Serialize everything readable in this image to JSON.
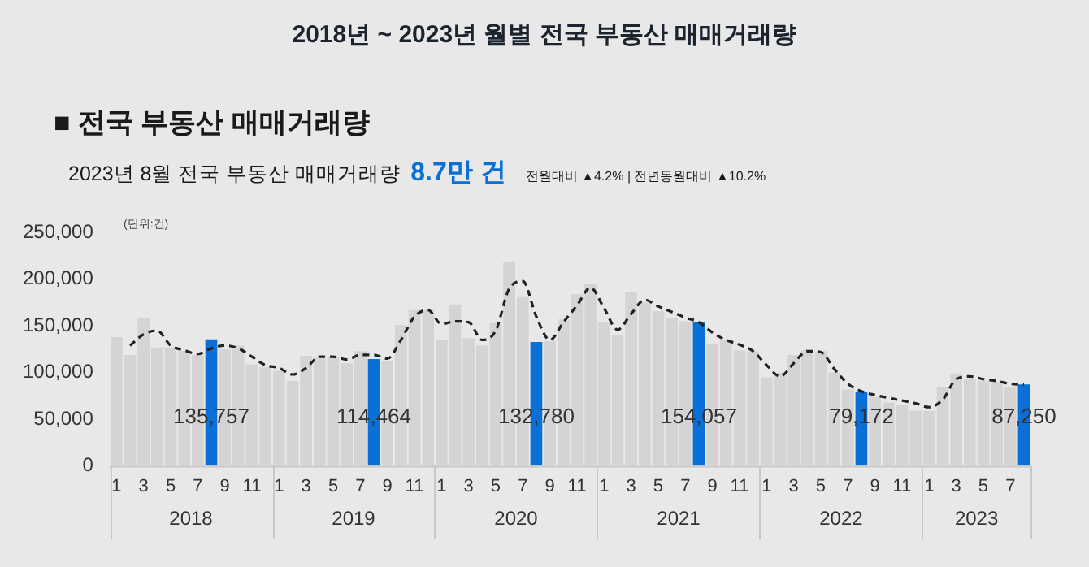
{
  "chart_data": {
    "type": "bar",
    "title": "2018년 ~ 2023년 월별 전국 부동산 매매거래량",
    "subtitle": "■ 전국 부동산 매매거래량",
    "annotations": [
      "2023년 8월 전국 부동산 매매거래량",
      "8.7만 건",
      "전월대비 ▲4.2% | 전년동월대비 ▲10.2%",
      "(단위:건)",
      "2018",
      "2019",
      "2020",
      "2021",
      "2022",
      "2023"
    ],
    "xlim": [
      "2017-12-16",
      "2023-08-16"
    ],
    "xticks": [
      {
        "value": "2018-01",
        "label": "1"
      },
      {
        "value": "2018-03",
        "label": "3"
      },
      {
        "value": "2018-05",
        "label": "5"
      },
      {
        "value": "2018-07",
        "label": "7"
      },
      {
        "value": "2018-09",
        "label": "9"
      },
      {
        "value": "2018-11",
        "label": "11"
      },
      {
        "value": "2019-01",
        "label": "1"
      },
      {
        "value": "2019-03",
        "label": "3"
      },
      {
        "value": "2019-05",
        "label": "5"
      },
      {
        "value": "2019-07",
        "label": "7"
      },
      {
        "value": "2019-09",
        "label": "9"
      },
      {
        "value": "2019-11",
        "label": "11"
      },
      {
        "value": "2020-01",
        "label": "1"
      },
      {
        "value": "2020-03",
        "label": "3"
      },
      {
        "value": "2020-05",
        "label": "5"
      },
      {
        "value": "2020-07",
        "label": "7"
      },
      {
        "value": "2020-09",
        "label": "9"
      },
      {
        "value": "2020-11",
        "label": "11"
      },
      {
        "value": "2021-01",
        "label": "1"
      },
      {
        "value": "2021-03",
        "label": "3"
      },
      {
        "value": "2021-05",
        "label": "5"
      },
      {
        "value": "2021-07",
        "label": "7"
      },
      {
        "value": "2021-09",
        "label": "9"
      },
      {
        "value": "2021-11",
        "label": "11"
      },
      {
        "value": "2022-01",
        "label": "1"
      },
      {
        "value": "2022-03",
        "label": "3"
      },
      {
        "value": "2022-05",
        "label": "5"
      },
      {
        "value": "2022-07",
        "label": "7"
      },
      {
        "value": "2022-09",
        "label": "9"
      },
      {
        "value": "2022-11",
        "label": "11"
      },
      {
        "value": "2023-01",
        "label": "1"
      },
      {
        "value": "2023-03",
        "label": "3"
      },
      {
        "value": "2023-05",
        "label": "5"
      },
      {
        "value": "2023-07",
        "label": "7"
      }
    ],
    "x": [
      "2018-01",
      "2018-02",
      "2018-03",
      "2018-04",
      "2018-05",
      "2018-06",
      "2018-07",
      "2018-08",
      "2018-09",
      "2018-10",
      "2018-11",
      "2018-12",
      "2019-01",
      "2019-02",
      "2019-03",
      "2019-04",
      "2019-05",
      "2019-06",
      "2019-07",
      "2019-08",
      "2019-09",
      "2019-10",
      "2019-11",
      "2019-12",
      "2020-01",
      "2020-02",
      "2020-03",
      "2020-04",
      "2020-05",
      "2020-06",
      "2020-07",
      "2020-08",
      "2020-09",
      "2020-10",
      "2020-11",
      "2020-12",
      "2021-01",
      "2021-02",
      "2021-03",
      "2021-04",
      "2021-05",
      "2021-06",
      "2021-07",
      "2021-08",
      "2021-09",
      "2021-10",
      "2021-11",
      "2021-12",
      "2022-01",
      "2022-02",
      "2022-03",
      "2022-04",
      "2022-05",
      "2022-06",
      "2022-07",
      "2022-08",
      "2022-09",
      "2022-10",
      "2022-11",
      "2022-12",
      "2023-01",
      "2023-02",
      "2023-03",
      "2023-04",
      "2023-05",
      "2023-06",
      "2023-07",
      "2023-08"
    ],
    "series": [
      {
        "colors": [
          "#d4d4d4",
          "#d4d4d4",
          "#d4d4d4",
          "#d4d4d4",
          "#d4d4d4",
          "#d4d4d4",
          "#d4d4d4",
          "#0a6fd6",
          "#d4d4d4",
          "#d4d4d4",
          "#d4d4d4",
          "#d4d4d4",
          "#d4d4d4",
          "#d4d4d4",
          "#d4d4d4",
          "#d4d4d4",
          "#d4d4d4",
          "#d4d4d4",
          "#d4d4d4",
          "#0a6fd6",
          "#d4d4d4",
          "#d4d4d4",
          "#d4d4d4",
          "#d4d4d4",
          "#d4d4d4",
          "#d4d4d4",
          "#d4d4d4",
          "#d4d4d4",
          "#d4d4d4",
          "#d4d4d4",
          "#d4d4d4",
          "#0a6fd6",
          "#d4d4d4",
          "#d4d4d4",
          "#d4d4d4",
          "#d4d4d4",
          "#d4d4d4",
          "#d4d4d4",
          "#d4d4d4",
          "#d4d4d4",
          "#d4d4d4",
          "#d4d4d4",
          "#d4d4d4",
          "#0a6fd6",
          "#d4d4d4",
          "#d4d4d4",
          "#d4d4d4",
          "#d4d4d4",
          "#d4d4d4",
          "#d4d4d4",
          "#d4d4d4",
          "#d4d4d4",
          "#d4d4d4",
          "#d4d4d4",
          "#d4d4d4",
          "#0a6fd6",
          "#d4d4d4",
          "#d4d4d4",
          "#d4d4d4",
          "#d4d4d4",
          "#d4d4d4",
          "#d4d4d4",
          "#d4d4d4",
          "#d4d4d4",
          "#d4d4d4",
          "#d4d4d4",
          "#d4d4d4",
          "#0a6fd6"
        ],
        "values": [
          138000,
          119000,
          159000,
          127000,
          127000,
          123000,
          119000,
          135757,
          125000,
          129000,
          109000,
          106000,
          102000,
          91000,
          118000,
          117000,
          117000,
          110000,
          123000,
          114464,
          112000,
          151000,
          167000,
          167000,
          135000,
          173000,
          137000,
          129000,
          153000,
          219000,
          181000,
          132780,
          134000,
          157000,
          184000,
          195000,
          154000,
          140000,
          186000,
          175000,
          166000,
          159000,
          155000,
          154057,
          131000,
          135000,
          124000,
          123000,
          95000,
          100000,
          119000,
          124000,
          123000,
          100000,
          82000,
          79172,
          74000,
          68000,
          65000,
          59000,
          59000,
          84000,
          99000,
          93000,
          91000,
          90000,
          85000,
          87250
        ],
        "value_labels": [
          null,
          null,
          null,
          null,
          null,
          null,
          null,
          "135,757",
          null,
          null,
          null,
          null,
          null,
          null,
          null,
          null,
          null,
          null,
          null,
          "114,464",
          null,
          null,
          null,
          null,
          null,
          null,
          null,
          null,
          null,
          null,
          null,
          "132,780",
          null,
          null,
          null,
          null,
          null,
          null,
          null,
          null,
          null,
          null,
          null,
          "154,057",
          null,
          null,
          null,
          null,
          null,
          null,
          null,
          null,
          null,
          null,
          null,
          "79,172",
          null,
          null,
          null,
          null,
          null,
          null,
          null,
          null,
          null,
          null,
          null,
          "87,250"
        ]
      },
      {
        "type": "line",
        "color": "#222222",
        "line_style": "dashed",
        "marker": "none",
        "values": [
          null,
          129000,
          141000,
          145000,
          129000,
          124000,
          120000,
          126000,
          129000,
          126000,
          117000,
          108000,
          105000,
          98000,
          105000,
          117000,
          117000,
          114000,
          119000,
          119000,
          115000,
          135000,
          160000,
          167000,
          152000,
          155000,
          154000,
          135000,
          145000,
          190000,
          198000,
          160000,
          135000,
          154000,
          172000,
          191000,
          169000,
          146000,
          163000,
          178000,
          171000,
          165000,
          159000,
          154000,
          143000,
          135000,
          130000,
          123000,
          108000,
          96000,
          110000,
          123000,
          122000,
          104000,
          88000,
          80000,
          76000,
          73000,
          70000,
          67000,
          63000,
          71000,
          93000,
          96000,
          93000,
          91000,
          88000,
          87000
        ]
      }
    ],
    "ylim": [
      0,
      250000
    ],
    "yticks": [
      0,
      {
        "value": 50000,
        "label": "50,000"
      },
      {
        "value": 100000,
        "label": "100,000"
      },
      {
        "value": 150000,
        "label": "150,000"
      },
      {
        "value": 200000,
        "label": "200,000"
      },
      {
        "value": 250000,
        "label": "250,000"
      }
    ],
    "grid": false,
    "legend": false
  }
}
